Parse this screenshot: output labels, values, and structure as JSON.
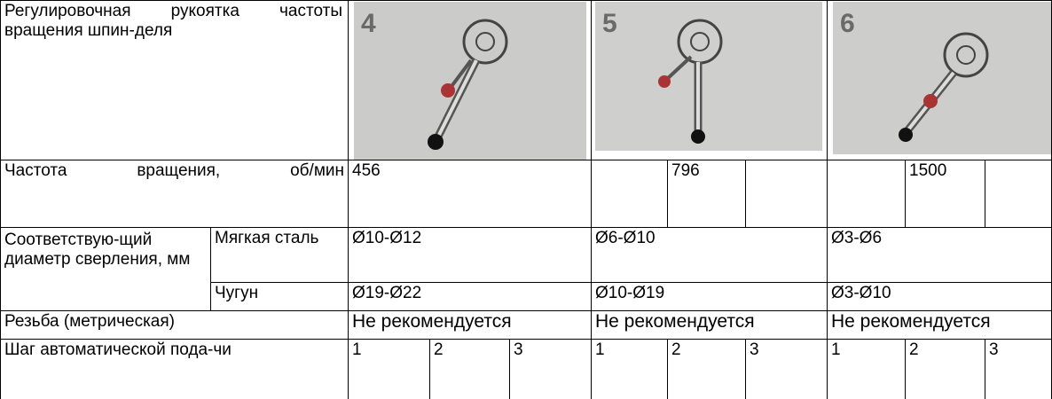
{
  "header_label": "Регулировочная рукоятка частоты вращения шпин-деля",
  "positions": [
    "4",
    "5",
    "6"
  ],
  "speed": {
    "label": "Частота вращения, об/мин",
    "values": [
      456,
      796,
      1500
    ]
  },
  "diameter": {
    "label": "Соответствую-щий диаметр сверления, мм",
    "materials": [
      {
        "name": "Мягкая сталь",
        "values": [
          "Ø10-Ø12",
          "Ø6-Ø10",
          "Ø3-Ø6"
        ]
      },
      {
        "name": "Чугун",
        "values": [
          "Ø19-Ø22",
          "Ø10-Ø19",
          "Ø3-Ø10"
        ]
      }
    ]
  },
  "thread": {
    "label": "Резьба (метрическая)",
    "values": [
      "Не рекомендуется",
      "Не рекомендуется",
      "Не рекомендуется"
    ]
  },
  "feed": {
    "label": "Шаг автоматической пода-чи",
    "values": [
      [
        1,
        2,
        3
      ],
      [
        1,
        2,
        3
      ],
      [
        1,
        2,
        3
      ]
    ]
  }
}
